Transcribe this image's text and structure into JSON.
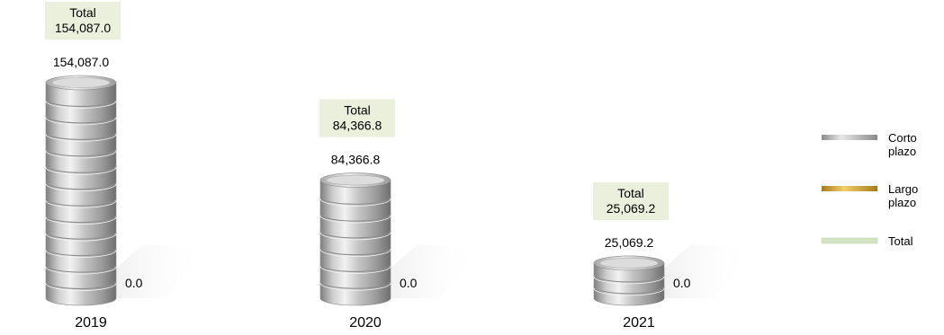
{
  "chart_data": {
    "type": "bar",
    "categories": [
      "2019",
      "2020",
      "2021"
    ],
    "series": [
      {
        "name": "Corto plazo",
        "values": [
          154087.0,
          84366.8,
          25069.2
        ]
      },
      {
        "name": "Largo plazo",
        "values": [
          0.0,
          0.0,
          0.0
        ]
      }
    ],
    "totals": [
      154087.0,
      84366.8,
      25069.2
    ],
    "total_box_label": "Total",
    "value_labels_short": [
      "154,087.0",
      "84,366.8",
      "25,069.2"
    ],
    "value_labels_long": [
      "0.0",
      "0.0",
      "0.0"
    ],
    "total_labels": [
      "154,087.0",
      "84,366.8",
      "25,069.2"
    ],
    "legend": {
      "position": "right",
      "items": [
        {
          "lines": [
            "Corto",
            "plazo"
          ],
          "color": "#a9a9a9"
        },
        {
          "lines": [
            "Largo",
            "plazo"
          ],
          "color": "#d9a326"
        },
        {
          "lines": [
            "Total"
          ],
          "color": "#d3e3c4"
        }
      ]
    },
    "colors": {
      "short": "#b5b5b5",
      "long": "#d9a326",
      "total_box": "#eaf0dc"
    },
    "grid": false,
    "title": "",
    "xlabel": "",
    "ylabel": ""
  }
}
